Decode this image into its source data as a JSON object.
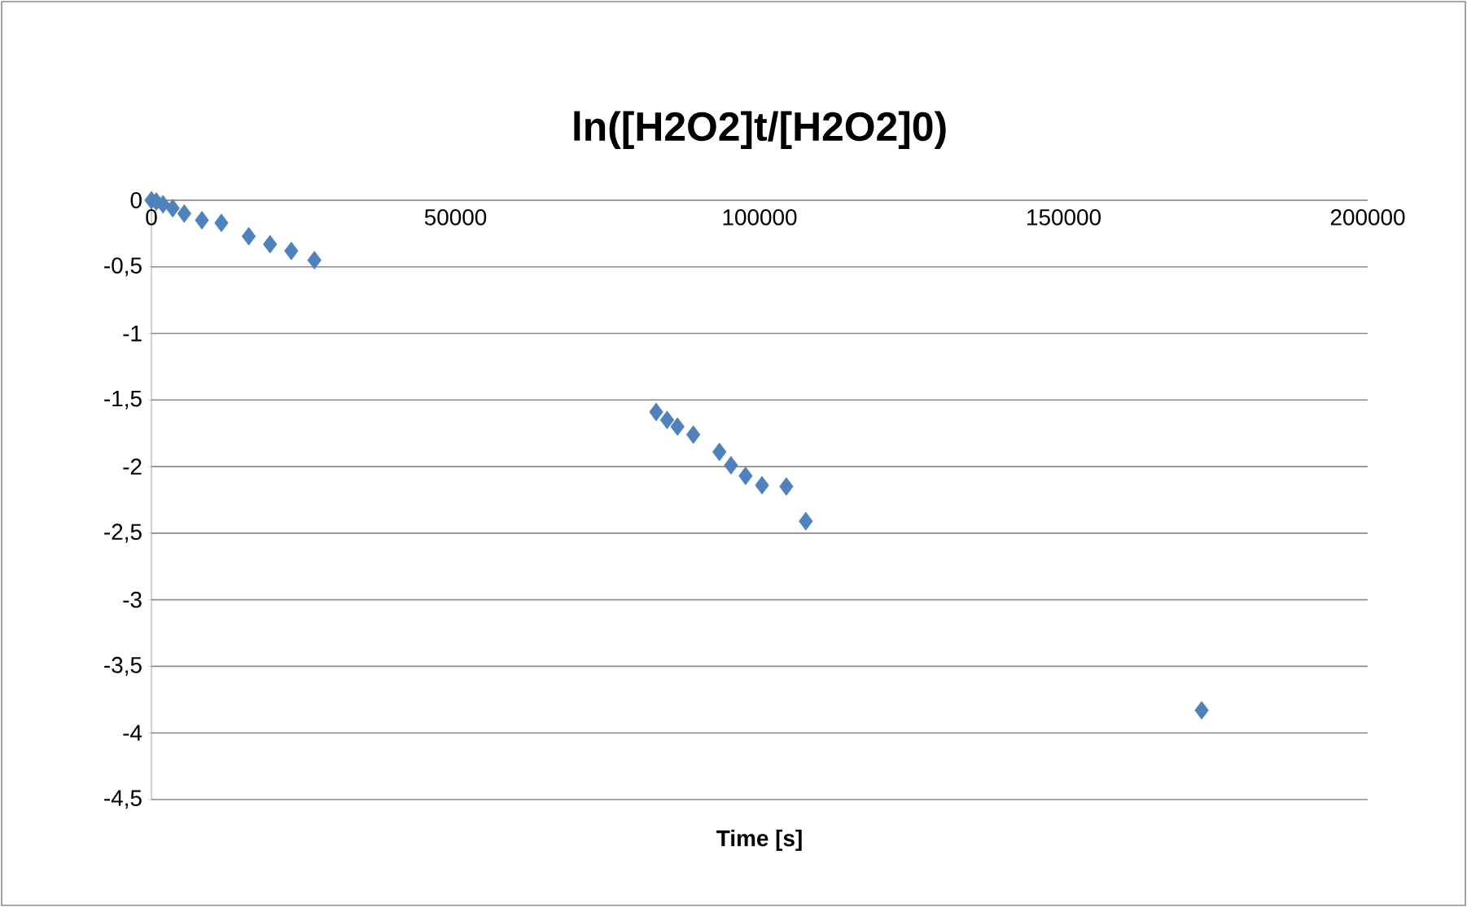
{
  "chart_data": {
    "type": "scatter",
    "title": "ln([H2O2]t/[H2O2]0)",
    "xlabel": "Time [s]",
    "series": [
      {
        "color": "#4f81bd",
        "x": [
          0,
          800,
          1900,
          3500,
          5400,
          8300,
          11500,
          16000,
          19500,
          23000,
          26800,
          83000,
          84800,
          86500,
          89100,
          93400,
          95300,
          97700,
          100400,
          104400,
          107600,
          172700
        ],
        "values": [
          0,
          -0.01,
          -0.03,
          -0.06,
          -0.1,
          -0.15,
          -0.17,
          -0.27,
          -0.33,
          -0.38,
          -0.45,
          -1.59,
          -1.65,
          -1.7,
          -1.76,
          -1.89,
          -1.99,
          -2.07,
          -2.14,
          -2.15,
          -2.41,
          -3.83
        ]
      }
    ],
    "xlim": [
      0,
      200000
    ],
    "xticks": [
      0,
      50000,
      100000,
      150000,
      200000
    ],
    "ylim": [
      -4.5,
      0
    ],
    "yticks": [
      {
        "value": -4.5,
        "label": "-4,5"
      },
      {
        "value": -4,
        "label": "-4"
      },
      {
        "value": -3.5,
        "label": "-3,5"
      },
      {
        "value": -3,
        "label": "-3"
      },
      {
        "value": -2.5,
        "label": "-2,5"
      },
      {
        "value": -2,
        "label": "-2"
      },
      {
        "value": -1.5,
        "label": "-1,5"
      },
      {
        "value": -1,
        "label": "-1"
      },
      {
        "value": -0.5,
        "label": "-0,5"
      },
      {
        "value": 0,
        "label": "0"
      }
    ],
    "grid": "y",
    "marker": "diamond"
  }
}
